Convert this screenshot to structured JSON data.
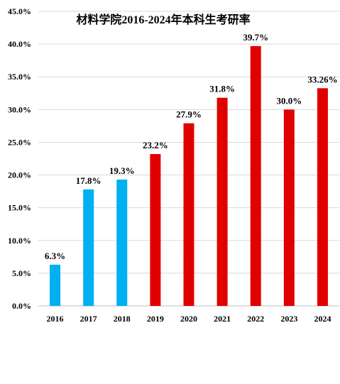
{
  "chart_data": {
    "type": "bar",
    "title": "材料学院2016-2024年本科生考研率",
    "xlabel": "",
    "ylabel": "",
    "categories": [
      "2016",
      "2017",
      "2018",
      "2019",
      "2020",
      "2021",
      "2022",
      "2023",
      "2024"
    ],
    "values": [
      6.3,
      17.8,
      19.3,
      23.2,
      27.9,
      31.8,
      39.7,
      30.0,
      33.26
    ],
    "data_labels": [
      "6.3%",
      "17.8%",
      "19.3%",
      "23.2%",
      "27.9%",
      "31.8%",
      "39.7%",
      "30.0%",
      "33.26%"
    ],
    "bar_colors": [
      "#00b0f0",
      "#00b0f0",
      "#00b0f0",
      "#e00000",
      "#e00000",
      "#e00000",
      "#e00000",
      "#e00000",
      "#e00000"
    ],
    "ylim": [
      0,
      45
    ],
    "y_ticks": [
      0,
      5,
      10,
      15,
      20,
      25,
      30,
      35,
      40,
      45
    ],
    "y_tick_labels": [
      "0.0%",
      "5.0%",
      "10.0%",
      "15.0%",
      "20.0%",
      "25.0%",
      "30.0%",
      "35.0%",
      "40.0%",
      "45.0%"
    ],
    "grid": true,
    "legend": "none"
  }
}
